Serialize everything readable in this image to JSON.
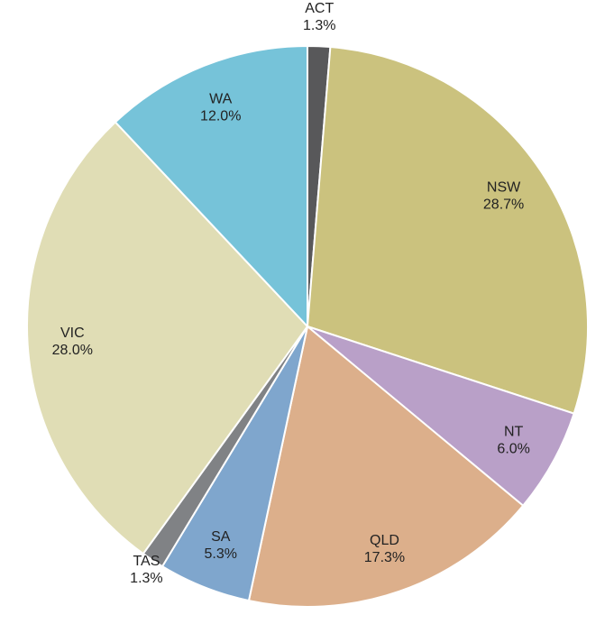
{
  "chart_data": {
    "type": "pie",
    "categories": [
      "ACT",
      "NSW",
      "NT",
      "QLD",
      "SA",
      "TAS",
      "VIC",
      "WA"
    ],
    "values": [
      1.3,
      28.7,
      6.0,
      17.3,
      5.3,
      1.3,
      28.0,
      12.0
    ],
    "value_labels": [
      "1.3%",
      "28.7%",
      "6.0%",
      "17.3%",
      "5.3%",
      "1.3%",
      "28.0%",
      "12.0%"
    ],
    "colors": [
      "#58585a",
      "#cbc27e",
      "#b9a0c8",
      "#dcaf8b",
      "#7fa6cd",
      "#808285",
      "#e0ddb5",
      "#76c3d9"
    ]
  }
}
